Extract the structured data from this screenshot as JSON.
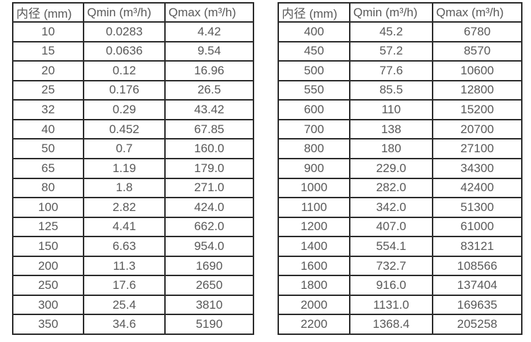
{
  "colors": {
    "background": "#ffffff",
    "border": "#2b2b2b",
    "text": "#595959"
  },
  "tables": [
    {
      "name": "small-diameters",
      "headers": [
        "内径 (mm)",
        "Qmin (m³/h)",
        "Qmax (m³/h)"
      ],
      "rows": [
        [
          "10",
          "0.0283",
          "4.42"
        ],
        [
          "15",
          "0.0636",
          "9.54"
        ],
        [
          "20",
          "0.12",
          "16.96"
        ],
        [
          "25",
          "0.176",
          "26.5"
        ],
        [
          "32",
          "0.29",
          "43.42"
        ],
        [
          "40",
          "0.452",
          "67.85"
        ],
        [
          "50",
          "0.7",
          "160.0"
        ],
        [
          "65",
          "1.19",
          "179.0"
        ],
        [
          "80",
          "1.8",
          "271.0"
        ],
        [
          "100",
          "2.82",
          "424.0"
        ],
        [
          "125",
          "4.41",
          "662.0"
        ],
        [
          "150",
          "6.63",
          "954.0"
        ],
        [
          "200",
          "11.3",
          "1690"
        ],
        [
          "250",
          "17.6",
          "2650"
        ],
        [
          "300",
          "25.4",
          "3810"
        ],
        [
          "350",
          "34.6",
          "5190"
        ]
      ]
    },
    {
      "name": "large-diameters",
      "headers": [
        "内径 (mm)",
        "Qmin (m³/h)",
        "Qmax (m³/h)"
      ],
      "rows": [
        [
          "400",
          "45.2",
          "6780"
        ],
        [
          "450",
          "57.2",
          "8570"
        ],
        [
          "500",
          "77.6",
          "10600"
        ],
        [
          "550",
          "85.5",
          "12800"
        ],
        [
          "600",
          "110",
          "15200"
        ],
        [
          "700",
          "138",
          "20700"
        ],
        [
          "800",
          "180",
          "27100"
        ],
        [
          "900",
          "229.0",
          "34300"
        ],
        [
          "1000",
          "282.0",
          "42400"
        ],
        [
          "1100",
          "342.0",
          "51300"
        ],
        [
          "1200",
          "407.0",
          "61000"
        ],
        [
          "1400",
          "554.1",
          "83121"
        ],
        [
          "1600",
          "732.7",
          "108566"
        ],
        [
          "1800",
          "916.0",
          "137404"
        ],
        [
          "2000",
          "1131.0",
          "169635"
        ],
        [
          "2200",
          "1368.4",
          "205258"
        ]
      ]
    }
  ]
}
